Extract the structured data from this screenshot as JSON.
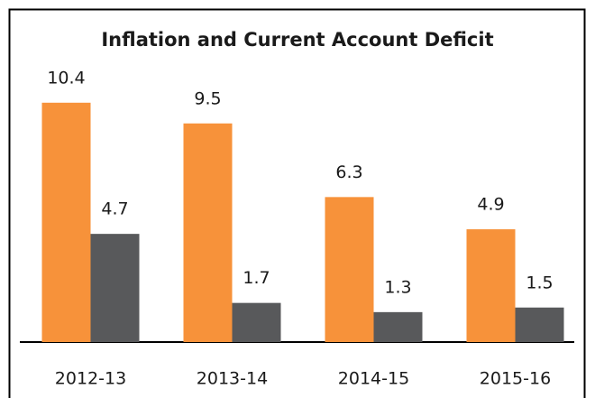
{
  "chart_data": {
    "type": "bar",
    "title": "Inflation and Current Account Deficit",
    "categories": [
      "2012-13",
      "2013-14",
      "2014-15",
      "2015-16"
    ],
    "series": [
      {
        "color": "#f7923a",
        "values": [
          10.4,
          9.5,
          6.3,
          4.9
        ]
      },
      {
        "color": "#58595b",
        "values": [
          4.7,
          1.7,
          1.3,
          1.5
        ]
      }
    ],
    "ylim": [
      0,
      12
    ]
  }
}
